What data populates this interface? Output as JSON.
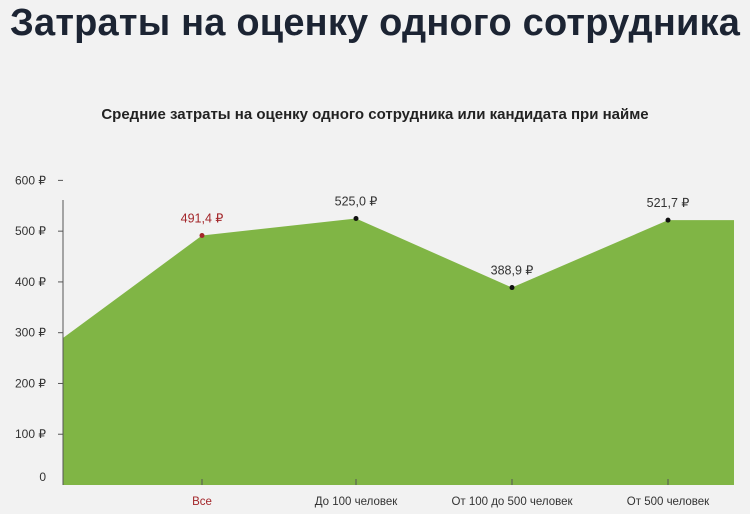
{
  "page": {
    "title": "Затраты на оценку одного сотрудника"
  },
  "chart_data": {
    "type": "area",
    "title": "Средние затраты на оценку одного сотрудника или кандидата при найме",
    "currency": "₽",
    "categories": [
      "Все",
      "До 100 человек",
      "От 100 до 500 человек",
      "От 500 человек"
    ],
    "values": [
      491.4,
      525.0,
      388.9,
      521.7
    ],
    "value_labels": [
      "491,4 ₽",
      "525,0 ₽",
      "388,9 ₽",
      "521,7 ₽"
    ],
    "highlight_index": 0,
    "y_ticks": [
      "0",
      "100 ₽",
      "200 ₽",
      "300 ₽",
      "400 ₽",
      "500 ₽",
      "600 ₽"
    ],
    "ylim": [
      0,
      650
    ],
    "colors": {
      "area": "#80b545",
      "highlight": "#a3262a",
      "text": "#333333",
      "point": "#111111"
    }
  }
}
